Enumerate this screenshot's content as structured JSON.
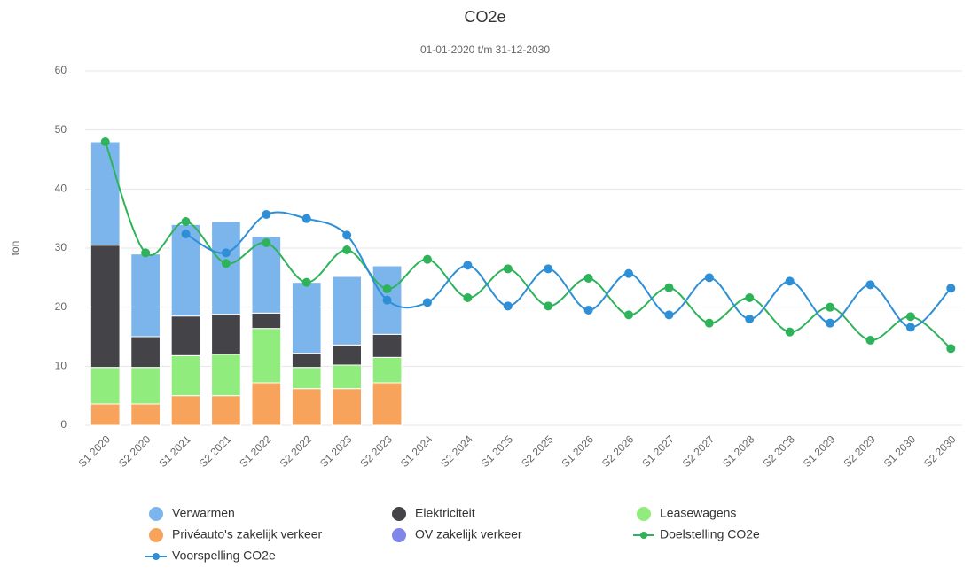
{
  "chart_data": {
    "type": "bar",
    "stacked": true,
    "title": "CO2e",
    "subtitle": "01-01-2020 t/m 31-12-2030",
    "y_label": "ton",
    "categories": [
      "S1 2020",
      "S2 2020",
      "S1 2021",
      "S2 2021",
      "S1 2022",
      "S2 2022",
      "S1 2023",
      "S2 2023",
      "S1 2024",
      "S2 2024",
      "S1 2025",
      "S2 2025",
      "S1 2026",
      "S2 2026",
      "S1 2027",
      "S2 2027",
      "S1 2028",
      "S2 2028",
      "S1 2029",
      "S2 2029",
      "S1 2030",
      "S2 2030"
    ],
    "ylim": [
      0,
      60
    ],
    "yticks": [
      0,
      10,
      20,
      30,
      40,
      50,
      60
    ],
    "grid": true,
    "legend": "bottom",
    "series": [
      {
        "name": "Verwarmen",
        "type": "bar",
        "color": "#7cb5ec",
        "values": [
          17.5,
          14,
          15.5,
          15.7,
          13,
          12,
          11.6,
          11.6,
          null,
          null,
          null,
          null,
          null,
          null,
          null,
          null,
          null,
          null,
          null,
          null,
          null,
          null
        ]
      },
      {
        "name": "Elektriciteit",
        "type": "bar",
        "color": "#434348",
        "values": [
          20.7,
          5.2,
          6.7,
          6.8,
          2.6,
          2.4,
          3.4,
          3.9,
          null,
          null,
          null,
          null,
          null,
          null,
          null,
          null,
          null,
          null,
          null,
          null,
          null,
          null
        ]
      },
      {
        "name": "Leasewagens",
        "type": "bar",
        "color": "#90ed7d",
        "values": [
          6.2,
          6.2,
          6.8,
          7,
          9.2,
          3.6,
          4,
          4.3,
          null,
          null,
          null,
          null,
          null,
          null,
          null,
          null,
          null,
          null,
          null,
          null,
          null,
          null
        ]
      },
      {
        "name": "Privéauto's zakelijk verkeer",
        "type": "bar",
        "color": "#f7a35c",
        "values": [
          3.6,
          3.6,
          5,
          5,
          7.2,
          6.2,
          6.2,
          7.2,
          null,
          null,
          null,
          null,
          null,
          null,
          null,
          null,
          null,
          null,
          null,
          null,
          null,
          null
        ]
      },
      {
        "name": "OV zakelijk verkeer",
        "type": "bar",
        "color": "#8085e9",
        "values": [
          null,
          null,
          null,
          null,
          null,
          null,
          null,
          null,
          null,
          null,
          null,
          null,
          null,
          null,
          null,
          null,
          null,
          null,
          null,
          null,
          null,
          null
        ]
      },
      {
        "name": "Doelstelling CO2e",
        "type": "line",
        "color": "#2eb35a",
        "values": [
          48,
          29.2,
          34.5,
          27.4,
          30.9,
          24.2,
          29.7,
          23.1,
          28.1,
          21.6,
          26.5,
          20.2,
          24.9,
          18.7,
          23.3,
          17.3,
          21.6,
          15.8,
          20,
          14.4,
          18.4,
          13
        ]
      },
      {
        "name": "Voorspelling CO2e",
        "type": "line",
        "color": "#2f8fd6",
        "values": [
          null,
          null,
          32.4,
          29.2,
          35.7,
          35,
          32.2,
          21.2,
          20.8,
          27.1,
          20.2,
          26.5,
          19.5,
          25.7,
          18.7,
          25,
          18,
          24.4,
          17.3,
          23.8,
          16.6,
          23.2
        ]
      }
    ]
  }
}
